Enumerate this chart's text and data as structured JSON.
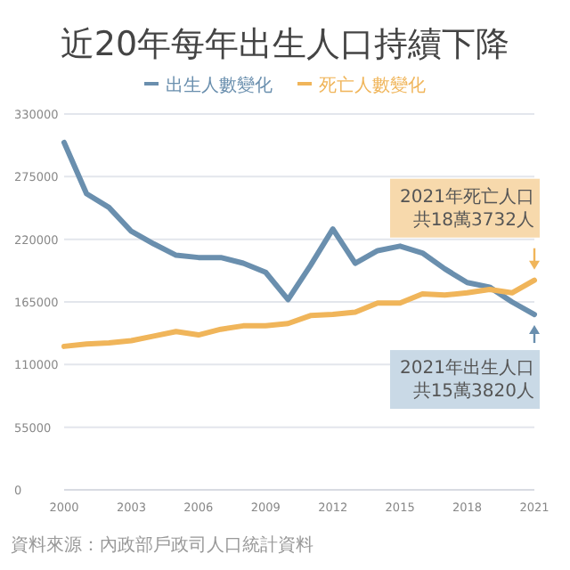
{
  "chart_data": {
    "type": "line",
    "title": "近20年每年出生人口持續下降",
    "x": [
      2000,
      2001,
      2002,
      2003,
      2004,
      2005,
      2006,
      2007,
      2008,
      2009,
      2010,
      2011,
      2012,
      2013,
      2014,
      2015,
      2016,
      2017,
      2018,
      2019,
      2020,
      2021
    ],
    "series": [
      {
        "name": "出生人數變化",
        "color": "#6a8fae",
        "values": [
          305000,
          260000,
          248000,
          227000,
          216000,
          206000,
          204000,
          204000,
          199000,
          191000,
          167000,
          197000,
          229000,
          199000,
          210000,
          214000,
          208000,
          194000,
          182000,
          178000,
          165000,
          154000
        ]
      },
      {
        "name": "死亡人數變化",
        "color": "#f0b55a",
        "values": [
          126000,
          128000,
          129000,
          131000,
          135000,
          139000,
          136000,
          141000,
          144000,
          144000,
          146000,
          153000,
          154000,
          156000,
          164000,
          164000,
          172000,
          171000,
          173000,
          176000,
          173000,
          184000
        ]
      }
    ],
    "xlim": [
      2000,
      2021
    ],
    "xticks": [
      2000,
      2003,
      2006,
      2009,
      2012,
      2015,
      2018,
      2021
    ],
    "ylim": [
      0,
      330000
    ],
    "yticks": [
      0,
      55000,
      110000,
      165000,
      220000,
      275000,
      330000
    ],
    "grid": "y",
    "legend": "top",
    "marker": "none",
    "line_style": "solid",
    "annotations": [
      {
        "text": "2021年死亡人口共18萬3732人",
        "x": 2021,
        "y": 184000
      },
      {
        "text": "2021年出生人口共15萬3820人",
        "x": 2021,
        "y": 154000
      },
      "資料來源：內政部戶政司人口統計資料"
    ]
  }
}
